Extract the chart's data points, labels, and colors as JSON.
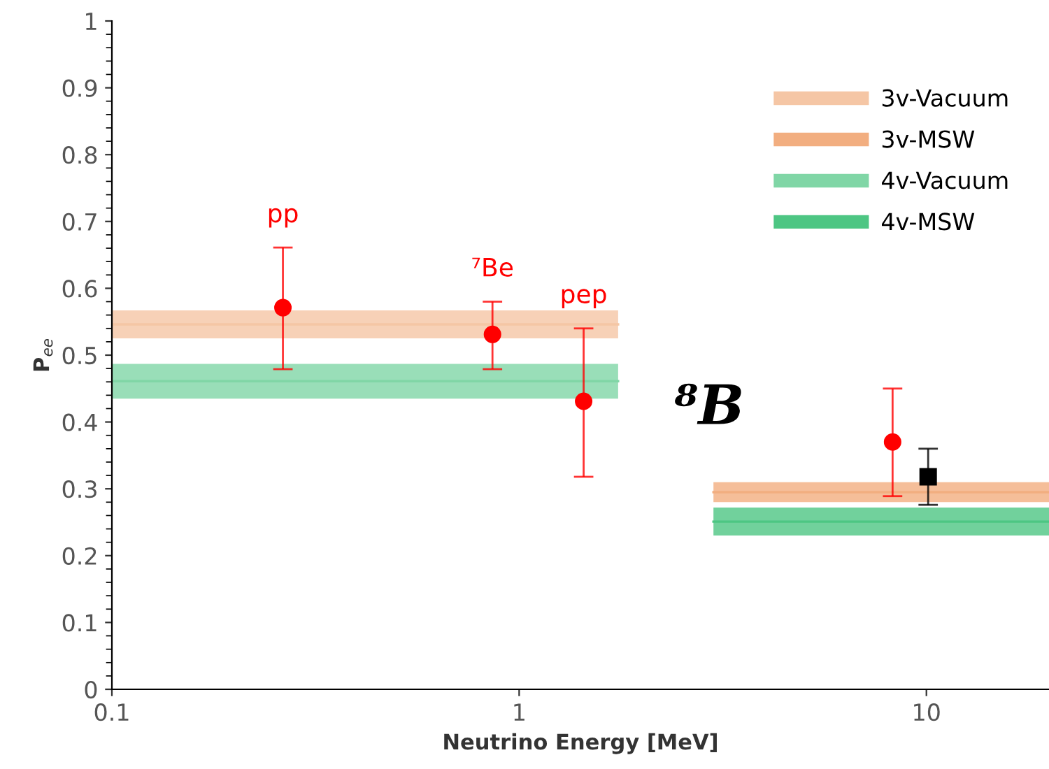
{
  "chart_data": {
    "type": "scatter",
    "xlabel": "Neutrino Energy [MeV]",
    "ylabel": "P$_{ee}$",
    "log": "x",
    "xlim": [
      0.1,
      20
    ],
    "xticks": [
      0.1,
      1,
      10
    ],
    "ylim": [
      0,
      1
    ],
    "yticks": [
      0,
      0.1,
      0.2,
      0.3,
      0.4,
      0.5,
      0.6,
      0.7,
      0.8,
      0.9,
      1
    ],
    "grid": false,
    "legend": "top right",
    "series": [
      {
        "name": "3v-Vacuum",
        "type": "line",
        "color": "#f5c6a5",
        "x": [
          0.1,
          1.75
        ],
        "values": [
          0.546,
          0.546
        ],
        "lower": [
          0.525,
          0.525
        ],
        "upper": [
          0.567,
          0.567
        ]
      },
      {
        "name": "3v-MSW",
        "type": "line",
        "color": "#f2ae80",
        "x": [
          3,
          20
        ],
        "values": [
          0.295,
          0.295
        ],
        "lower": [
          0.28,
          0.28
        ],
        "upper": [
          0.31,
          0.31
        ]
      },
      {
        "name": "4v-Vacuum",
        "type": "line",
        "color": "#80d6a6",
        "x": [
          0.1,
          1.75
        ],
        "values": [
          0.461,
          0.461
        ],
        "lower": [
          0.435,
          0.435
        ],
        "upper": [
          0.487,
          0.487
        ]
      },
      {
        "name": "4v-MSW",
        "type": "line",
        "color": "#4dc683",
        "x": [
          3,
          20
        ],
        "values": [
          0.251,
          0.251
        ],
        "lower": [
          0.23,
          0.23
        ],
        "upper": [
          0.272,
          0.272
        ]
      },
      {
        "color": "#ff0000",
        "marker": "circle",
        "x": [
          0.263,
          0.86,
          1.44,
          8.26
        ],
        "values": [
          0.571,
          0.531,
          0.431,
          0.37
        ],
        "errors": [
          [
            0.479,
            0.661
          ],
          [
            0.479,
            0.58
          ],
          [
            0.318,
            0.54
          ],
          [
            0.289,
            0.45
          ]
        ]
      },
      {
        "color": "#000000",
        "marker": "square",
        "x": [
          10.1
        ],
        "values": [
          0.318
        ],
        "errors": [
          [
            0.276,
            0.36
          ]
        ]
      }
    ],
    "annotations": [
      "pp",
      "⁷Be",
      "pep",
      "⁸B"
    ]
  }
}
